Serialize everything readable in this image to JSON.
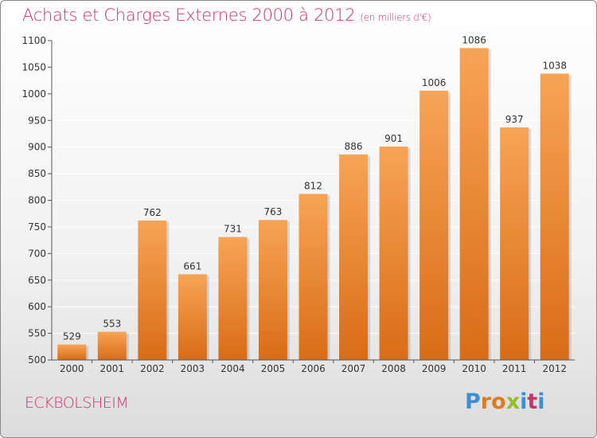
{
  "title": "Achats et Charges Externes 2000 à 2012",
  "unit": "(en milliers d'€)",
  "city": "ECKBOLSHEIM",
  "logo": [
    "P",
    "r",
    "o",
    "x",
    "i",
    "t",
    "i"
  ],
  "logo_colors": [
    "#3b8fd8",
    "#e07b1d",
    "#e07b1d",
    "#8fbf2c",
    "#3b8fd8",
    "#c8346a",
    "#3b8fd8"
  ],
  "colors": {
    "bar_top": "#f7a456",
    "bar_bottom": "#d96c16",
    "title": "#c8346a",
    "grid": "#ffffff"
  },
  "chart_data": {
    "type": "bar",
    "title": "Achats et Charges Externes 2000 à 2012",
    "subtitle": "(en milliers d'€)",
    "categories": [
      "2000",
      "2001",
      "2002",
      "2003",
      "2004",
      "2005",
      "2006",
      "2007",
      "2008",
      "2009",
      "2010",
      "2011",
      "2012"
    ],
    "values": [
      529,
      553,
      762,
      661,
      731,
      763,
      812,
      886,
      901,
      1006,
      1086,
      937,
      1038
    ],
    "ylim": [
      500,
      1100
    ],
    "yticks": [
      500,
      550,
      600,
      650,
      700,
      750,
      800,
      850,
      900,
      950,
      1000,
      1050,
      1100
    ],
    "grid": true,
    "xlabel": "",
    "ylabel": ""
  }
}
